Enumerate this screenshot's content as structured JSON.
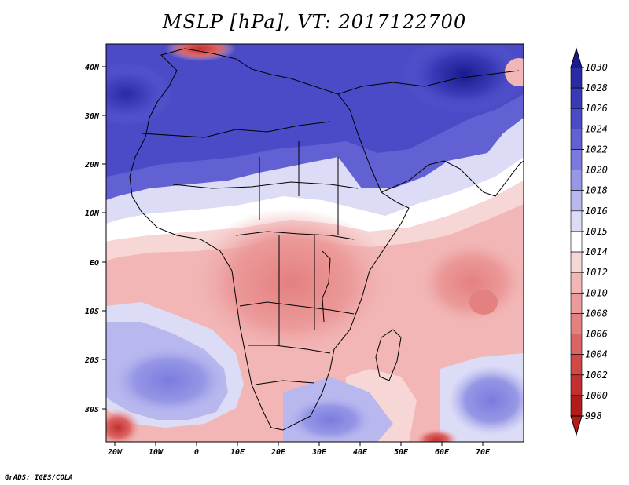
{
  "title": "MSLP [hPa], VT: 2017122700",
  "credit": "GrADS: IGES/COLA",
  "lat_labels": [
    "40N",
    "30N",
    "20N",
    "10N",
    "EQ",
    "10S",
    "20S",
    "30S"
  ],
  "lon_labels": [
    "20W",
    "10W",
    "0",
    "10E",
    "20E",
    "30E",
    "40E",
    "50E",
    "60E",
    "70E"
  ],
  "colorbar": {
    "levels": [
      "1030",
      "1028",
      "1026",
      "1024",
      "1022",
      "1020",
      "1018",
      "1016",
      "1015",
      "1014",
      "1012",
      "1010",
      "1008",
      "1006",
      "1004",
      "1002",
      "1000",
      "998"
    ],
    "colors": [
      "#1a1a8c",
      "#2a2aa6",
      "#3a3ab8",
      "#4b4bc8",
      "#6161d4",
      "#7b7bdf",
      "#9797e6",
      "#b8b8ef",
      "#dcdcf7",
      "#ffffff",
      "#f7d6d6",
      "#f2b6b6",
      "#ec9a9a",
      "#e48080",
      "#dc6464",
      "#d24848",
      "#c43030",
      "#b31a1a"
    ]
  },
  "regions": {
    "high_north": "High pressure over Asia / Middle East",
    "low_central": "Low pressure over Central Africa",
    "low_indian": "Low near Madagascar"
  }
}
